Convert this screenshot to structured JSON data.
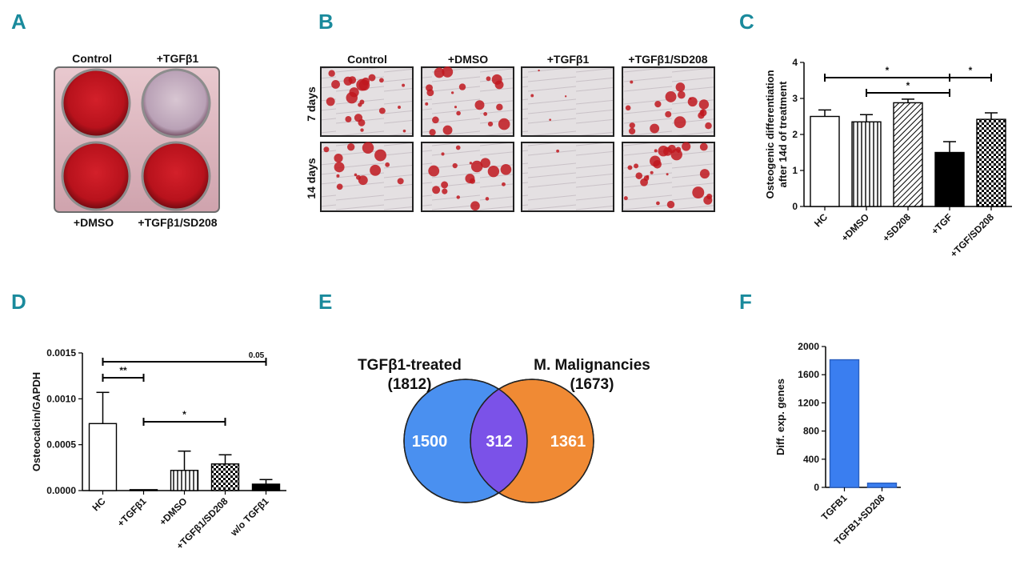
{
  "panels": {
    "a": "A",
    "b": "B",
    "c": "C",
    "d": "D",
    "e": "E",
    "f": "F"
  },
  "colors": {
    "panel_label": "#1a8a9c",
    "stain": "#c0181f",
    "venn_left": "#4a90f0",
    "venn_right": "#f08a34",
    "venn_overlap": "#7b52e8",
    "bar_f": "#3a7ef0"
  },
  "panel_a": {
    "top_labels": [
      "Control",
      "+TGFβ1"
    ],
    "bottom_labels": [
      "+DMSO",
      "+TGFβ1/SD208"
    ]
  },
  "panel_b": {
    "columns": [
      "Control",
      "+DMSO",
      "+TGFβ1",
      "+TGFβ1/SD208"
    ],
    "rows": [
      "7 days",
      "14 days"
    ]
  },
  "chart_data": [
    {
      "id": "C",
      "type": "bar",
      "categories": [
        "HC",
        "+DMSO",
        "+SD208",
        "+TGF",
        "+TGF/SD208"
      ],
      "values": [
        2.5,
        2.35,
        2.88,
        1.5,
        2.42
      ],
      "errors": [
        0.18,
        0.2,
        0.1,
        0.3,
        0.18
      ],
      "patterns": [
        "white",
        "vertical-stripes",
        "diagonal-stripes",
        "black",
        "checker"
      ],
      "ylabel": "Osteogenic differentiation after 14d of treatment",
      "ylim": [
        0,
        4
      ],
      "yticks": [
        "0",
        "1",
        "2",
        "3",
        "4"
      ],
      "significance": [
        {
          "from": "HC",
          "to": "+TGF",
          "label": "*"
        },
        {
          "from": "+DMSO",
          "to": "+TGF",
          "label": "*"
        },
        {
          "from": "+TGF",
          "to": "+TGF/SD208",
          "label": "*"
        }
      ]
    },
    {
      "id": "D",
      "type": "bar",
      "categories": [
        "HC",
        "+TGFβ1",
        "+DMSO",
        "+TGFβ1/SD208",
        "w/o TGFβ1"
      ],
      "values": [
        0.00073,
        1e-05,
        0.00022,
        0.00029,
        7e-05
      ],
      "errors": [
        0.00034,
        0.0,
        0.00021,
        0.0001,
        5e-05
      ],
      "patterns": [
        "white",
        "black",
        "vertical-stripes",
        "checker",
        "black"
      ],
      "ylabel": "Osteocalcin/GAPDH",
      "ylim": [
        0,
        0.0015
      ],
      "yticks": [
        "0.0000",
        "0.0005",
        "0.0010",
        "0.0015"
      ],
      "significance": [
        {
          "from": "HC",
          "to": "w/o TGFβ1",
          "label": "0.05"
        },
        {
          "from": "HC",
          "to": "+TGFβ1",
          "label": "**"
        },
        {
          "from": "+TGFβ1",
          "to": "+TGFβ1/SD208",
          "label": "*"
        }
      ]
    },
    {
      "id": "E",
      "type": "venn",
      "sets": [
        {
          "name": "TGFβ1-treated",
          "total": "(1812)",
          "only": "1500"
        },
        {
          "name": "M. Malignancies",
          "total": "(1673)",
          "only": "1361"
        }
      ],
      "overlap": "312"
    },
    {
      "id": "F",
      "type": "bar",
      "categories": [
        "TGFB1",
        "TGFB1+SD208"
      ],
      "values": [
        1812,
        60
      ],
      "ylabel": "Diff. exp. genes",
      "ylim": [
        0,
        2000
      ],
      "yticks": [
        "0",
        "400",
        "800",
        "1200",
        "1600",
        "2000"
      ]
    }
  ]
}
